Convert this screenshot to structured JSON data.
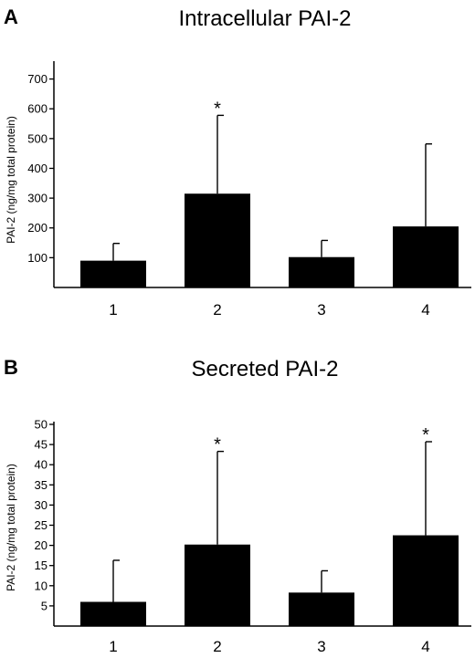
{
  "chart_data": [
    {
      "panel": "A",
      "type": "bar",
      "title": "Intracellular PAI-2",
      "ylabel": "PAI-2 (ng/mg total protein)",
      "categories": [
        "1",
        "2",
        "3",
        "4"
      ],
      "values": [
        90,
        315,
        102,
        205
      ],
      "error_upper": [
        148,
        578,
        158,
        482
      ],
      "significant": [
        false,
        true,
        false,
        false
      ],
      "significance_marker": "*",
      "yticks": [
        "100",
        "200",
        "300",
        "400",
        "500",
        "600",
        "700"
      ],
      "ylim": [
        0,
        760
      ]
    },
    {
      "panel": "B",
      "type": "bar",
      "title": "Secreted PAI-2",
      "ylabel": "PAI-2 (ng/mg total protein)",
      "categories": [
        "1",
        "2",
        "3",
        "4"
      ],
      "values": [
        6,
        20.2,
        8.3,
        22.5
      ],
      "error_upper": [
        16.3,
        43.3,
        13.7,
        45.7
      ],
      "significant": [
        false,
        true,
        false,
        true
      ],
      "significance_marker": "*",
      "yticks": [
        "5",
        "10",
        "15",
        "20",
        "25",
        "30",
        "35",
        "40",
        "45",
        "50"
      ],
      "ylim": [
        0,
        50
      ]
    }
  ]
}
